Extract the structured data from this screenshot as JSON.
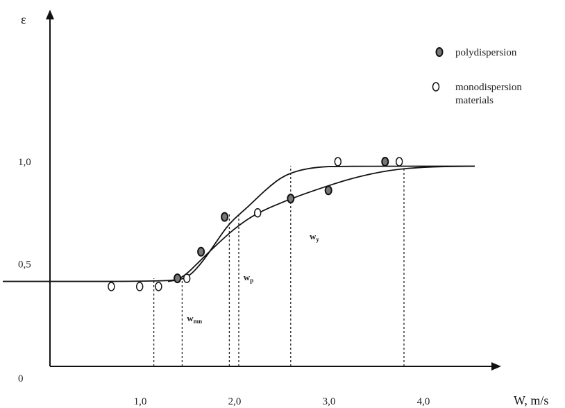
{
  "chart_data": {
    "type": "scatter",
    "xlabel": "W, m/s",
    "ylabel": "ε",
    "xlim": [
      0,
      5.2
    ],
    "ylim": [
      0,
      1.48
    ],
    "x_ticks": [
      "1,0",
      "2,0",
      "3,0",
      "4,0"
    ],
    "x_tick_values": [
      1.0,
      2.0,
      3.0,
      4.0
    ],
    "y_ticks": [
      "0",
      "0,5",
      "1,0"
    ],
    "y_tick_values": [
      0,
      0.5,
      1.0
    ],
    "legend_position": "top-right",
    "series": [
      {
        "name": "polydispersion",
        "marker": "filled-ellipse",
        "points": [
          [
            1.35,
            0.43
          ],
          [
            1.6,
            0.56
          ],
          [
            1.85,
            0.73
          ],
          [
            2.55,
            0.82
          ],
          [
            2.95,
            0.86
          ],
          [
            3.55,
            1.0
          ]
        ],
        "curve": [
          [
            -0.5,
            0.415
          ],
          [
            1.25,
            0.415
          ],
          [
            1.4,
            0.43
          ],
          [
            1.6,
            0.52
          ],
          [
            1.8,
            0.61
          ],
          [
            2.0,
            0.69
          ],
          [
            2.2,
            0.75
          ],
          [
            2.5,
            0.81
          ],
          [
            2.8,
            0.86
          ],
          [
            3.2,
            0.92
          ],
          [
            3.6,
            0.96
          ],
          [
            4.0,
            0.975
          ],
          [
            4.5,
            0.978
          ]
        ]
      },
      {
        "name": "monodispersion materials",
        "marker": "open-ellipse",
        "points": [
          [
            0.65,
            0.39
          ],
          [
            0.95,
            0.39
          ],
          [
            1.15,
            0.39
          ],
          [
            1.45,
            0.43
          ],
          [
            2.2,
            0.75
          ],
          [
            3.05,
            1.0
          ],
          [
            3.7,
            1.0
          ]
        ],
        "curve": [
          [
            1.25,
            0.415
          ],
          [
            1.45,
            0.43
          ],
          [
            1.6,
            0.5
          ],
          [
            1.75,
            0.6
          ],
          [
            1.9,
            0.7
          ],
          [
            2.1,
            0.78
          ],
          [
            2.3,
            0.87
          ],
          [
            2.5,
            0.94
          ],
          [
            2.8,
            0.975
          ],
          [
            3.2,
            0.978
          ],
          [
            4.5,
            0.978
          ]
        ]
      }
    ],
    "annotations": [
      {
        "label": "w",
        "sub": "mn",
        "x": 1.45,
        "y": 0.22
      },
      {
        "label": "w",
        "sub": "p",
        "x": 2.05,
        "y": 0.42
      },
      {
        "label": "w",
        "sub": "y",
        "x": 2.75,
        "y": 0.62
      }
    ],
    "dashed_guides_x": [
      1.1,
      1.4,
      1.9,
      2.0,
      2.55,
      3.75
    ]
  }
}
